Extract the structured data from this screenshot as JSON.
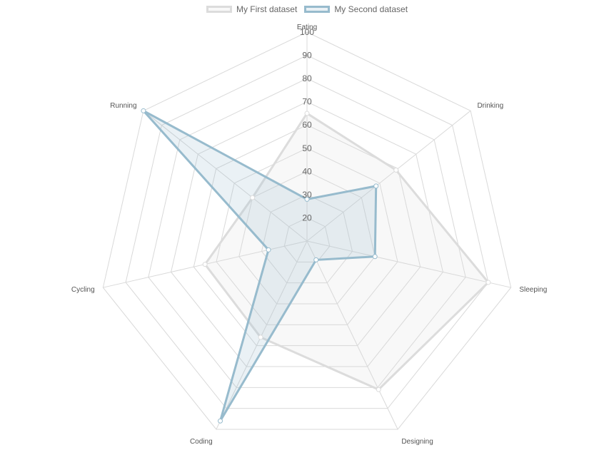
{
  "chart_data": {
    "type": "radar",
    "labels": [
      "Eating",
      "Drinking",
      "Sleeping",
      "Designing",
      "Coding",
      "Cycling",
      "Running"
    ],
    "r_range": [
      10,
      100
    ],
    "ticks": [
      20,
      30,
      40,
      50,
      60,
      70,
      80,
      90,
      100
    ],
    "grid": true,
    "legend_position": "top-center",
    "series": [
      {
        "name": "My First dataset",
        "values": [
          65,
          59,
          90,
          81,
          56,
          55,
          40
        ],
        "stroke": "#dcdcdc",
        "fill": "#dcdcdc",
        "point_stroke": "#dcdcdc"
      },
      {
        "name": "My Second dataset",
        "values": [
          28,
          48,
          40,
          19,
          96,
          27,
          100
        ],
        "stroke": "#97bbcd",
        "fill": "#97bbcd",
        "point_stroke": "#97bbcd"
      }
    ]
  }
}
